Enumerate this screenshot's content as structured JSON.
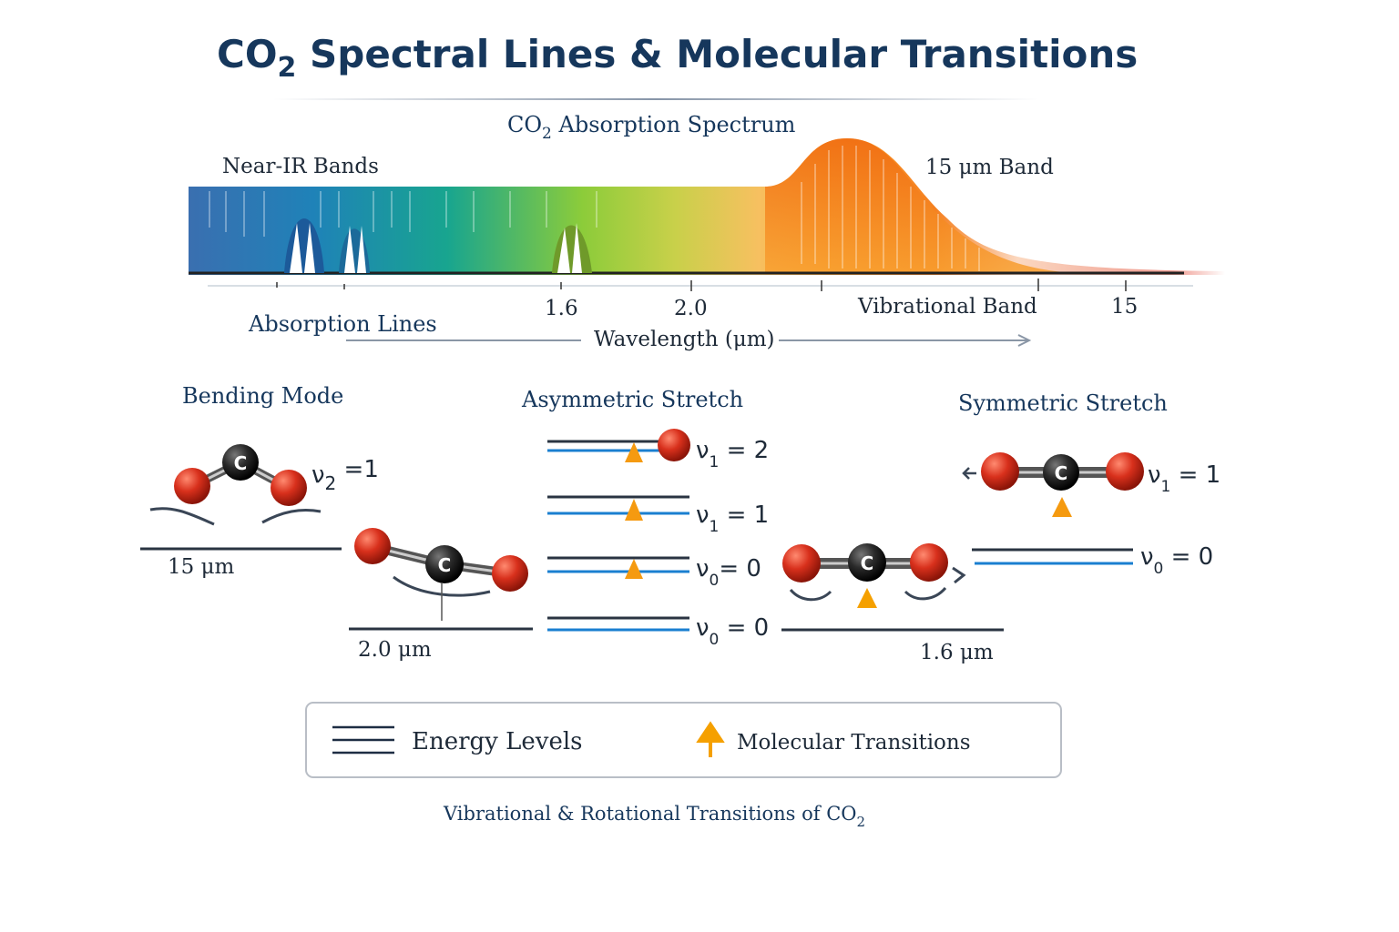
{
  "title": {
    "main": "CO",
    "sub": "2",
    "rest": " Spectral Lines & Molecular Transitions"
  },
  "spectrum": {
    "heading_main": "CO",
    "heading_sub": "2",
    "heading_rest": " Absorption Spectrum",
    "near_ir_label": "Near-IR Bands",
    "band_label": "15 μm Band",
    "absorption_lines_label": "Absorption Lines",
    "vibrational_band_label": "Vibrational Band",
    "axis_label": "Wavelength (μm)",
    "ticks": [
      "1.6",
      "2.0",
      "15"
    ]
  },
  "modes": {
    "bending": {
      "title": "Bending Mode",
      "level_nu": "ν",
      "level_sub": "2",
      "level_rest": " =1",
      "wavelength": "15 μm",
      "atom": "C"
    },
    "bending2": {
      "wavelength": "2.0 μm",
      "atom": "C"
    },
    "asymmetric": {
      "title": "Asymmetric Stretch",
      "levels": [
        {
          "nu": "ν",
          "sub": "1",
          "rest": " = 2"
        },
        {
          "nu": "ν",
          "sub": "1",
          "rest": " = 1"
        },
        {
          "nu": "ν",
          "sub": "0",
          "rest": "= 0"
        },
        {
          "nu": "ν",
          "sub": "0",
          "rest": " = 0"
        }
      ]
    },
    "symmetric": {
      "title": "Symmetric Stretch",
      "upper": {
        "nu": "ν",
        "sub": "1",
        "rest": " = 1"
      },
      "lower": {
        "nu": "ν",
        "sub": "0",
        "rest": " = 0"
      },
      "wavelength": "1.6 μm",
      "atom": "C"
    }
  },
  "legend": {
    "energy_levels": "Energy Levels",
    "transitions": "Molecular Transitions"
  },
  "caption": {
    "main": "Vibrational & Rotational Transitions of CO",
    "sub": "2"
  },
  "colors": {
    "navy": "#16375c",
    "level_blue": "#1a7fd0",
    "arrow_orange": "#f5a000",
    "oxygen": "#d8301c"
  }
}
